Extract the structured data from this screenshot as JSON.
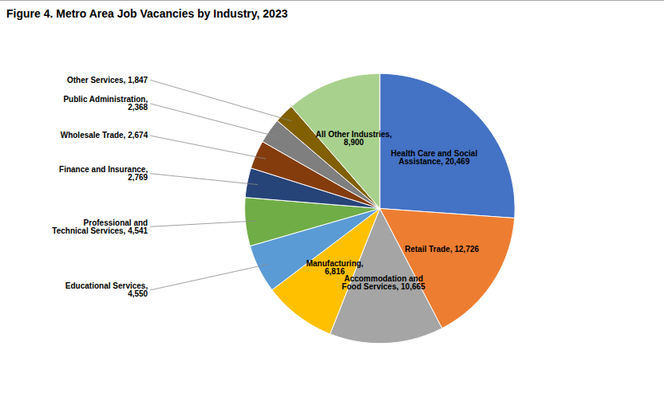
{
  "chart_data": {
    "type": "pie",
    "title": "Figure 4. Metro Area Job Vacancies by Industry, 2023",
    "categories": [
      "Health Care and Social\nAssistance, 20,469",
      "Retail Trade, 12,726",
      "Accommodation and\nFood Services, 10,665",
      "Manufacturing,\n6,816",
      "Educational Services,\n4,550",
      "Professional and\nTechnical Services, 4,541",
      "Finance and Insurance,\n2,769",
      "Wholesale Trade, 2,674",
      "Public Administration,\n2,368",
      "Other Services, 1,847",
      "All Other Industries,\n8,900"
    ],
    "values": [
      20469,
      12726,
      10665,
      6816,
      4550,
      4541,
      2769,
      2674,
      2368,
      1847,
      8900
    ],
    "colors": [
      "#4472C4",
      "#ED7D31",
      "#A5A5A5",
      "#FFC000",
      "#5B9BD5",
      "#70AD47",
      "#264478",
      "#843C0C",
      "#7F7F7F",
      "#806000",
      "#A9D18E"
    ]
  }
}
